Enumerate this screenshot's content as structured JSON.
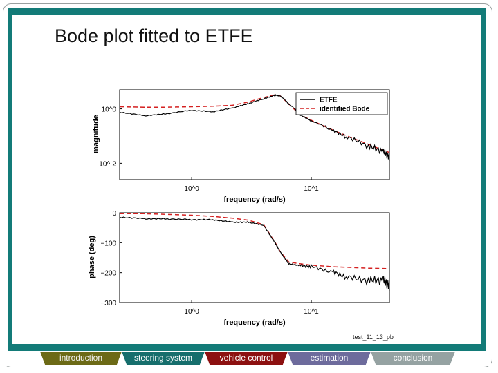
{
  "slide": {
    "title": "Bode plot fitted to ETFE",
    "caption": "test_11_13_pb"
  },
  "nav": {
    "tabs": [
      {
        "label": "introduction",
        "color": "#6c6a16"
      },
      {
        "label": "steering system",
        "color": "#166e6c"
      },
      {
        "label": "vehicle control",
        "color": "#8c1010"
      },
      {
        "label": "estimation",
        "color": "#6d6b9c"
      },
      {
        "label": "conclusion",
        "color": "#95a2a2"
      }
    ]
  },
  "colors": {
    "frame": "#137b78",
    "etfe": "#000000",
    "bode": "#d42020"
  },
  "chart_data": [
    {
      "type": "line",
      "xscale": "log",
      "yscale": "log",
      "ylabel": "magnitude",
      "xlabel": "frequency (rad/s)",
      "xticks": [
        "10^0",
        "10^1"
      ],
      "yticks": [
        "10^0",
        "10^-2"
      ],
      "legend": {
        "position": "top-right",
        "entries": [
          "ETFE",
          "identified Bode"
        ]
      },
      "series": [
        {
          "name": "ETFE",
          "style": "solid",
          "x": [
            0.25,
            0.4,
            0.6,
            1.0,
            1.5,
            2.2,
            3.0,
            4.0,
            5.0,
            5.5,
            6.5,
            8.0,
            10,
            15,
            20,
            30,
            40,
            45
          ],
          "y": [
            0.75,
            0.55,
            0.65,
            0.9,
            0.8,
            1.1,
            1.6,
            2.4,
            3.3,
            3.0,
            1.5,
            0.6,
            0.35,
            0.15,
            0.08,
            0.035,
            0.02,
            0.012
          ]
        },
        {
          "name": "identified Bode",
          "style": "dashed",
          "x": [
            0.25,
            0.4,
            0.6,
            1.0,
            1.5,
            2.2,
            3.0,
            4.0,
            5.0,
            5.5,
            6.5,
            8.0,
            10,
            15,
            20,
            30,
            40,
            45
          ],
          "y": [
            1.2,
            1.15,
            1.15,
            1.2,
            1.25,
            1.35,
            1.8,
            2.6,
            3.3,
            3.0,
            1.5,
            0.62,
            0.38,
            0.17,
            0.1,
            0.05,
            0.03,
            0.025
          ]
        }
      ]
    },
    {
      "type": "line",
      "xscale": "log",
      "ylabel": "phase (deg)",
      "xlabel": "frequency (rad/s)",
      "xticks": [
        "10^0",
        "10^1"
      ],
      "yticks": [
        "0",
        "−100",
        "−200",
        "−300"
      ],
      "ylim": [
        -300,
        0
      ],
      "series": [
        {
          "name": "ETFE",
          "style": "solid",
          "x": [
            0.25,
            0.4,
            0.6,
            1.0,
            1.5,
            2.2,
            3.0,
            4.0,
            5.0,
            5.5,
            6.5,
            8.0,
            10,
            15,
            20,
            30,
            40,
            45
          ],
          "y": [
            -15,
            -20,
            -20,
            -22,
            -22,
            -30,
            -30,
            -40,
            -100,
            -130,
            -170,
            -175,
            -180,
            -200,
            -220,
            -235,
            -240,
            -260
          ]
        },
        {
          "name": "identified Bode",
          "style": "dashed",
          "x": [
            0.25,
            0.4,
            0.6,
            1.0,
            1.5,
            2.2,
            3.0,
            4.0,
            5.0,
            5.5,
            6.5,
            8.0,
            10,
            15,
            20,
            30,
            40,
            45
          ],
          "y": [
            -3,
            -3,
            -5,
            -8,
            -12,
            -18,
            -25,
            -40,
            -100,
            -130,
            -165,
            -170,
            -175,
            -180,
            -182,
            -185,
            -186,
            -187
          ]
        }
      ]
    }
  ]
}
